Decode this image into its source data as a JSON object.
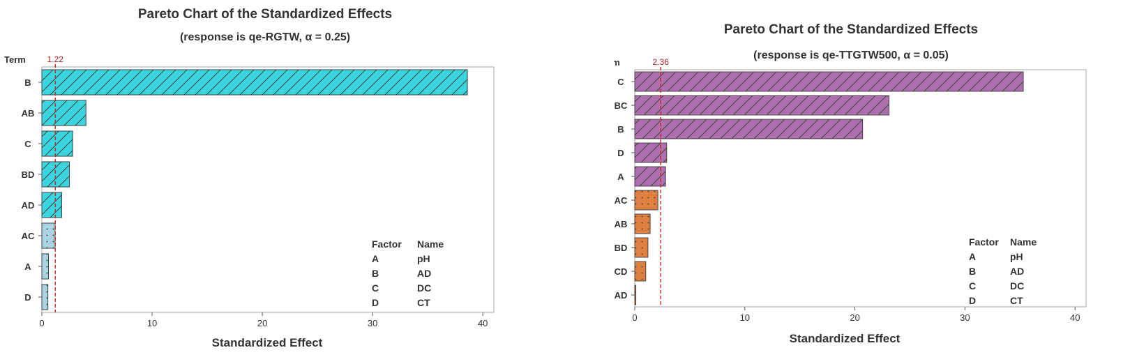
{
  "chart_data": [
    {
      "type": "bar",
      "orientation": "horizontal",
      "title": "Pareto Chart of the Standardized Effects",
      "subtitle": "(response is qe-RGTW, α = 0.25)",
      "xlabel": "Standardized Effect",
      "ylabel": "Term",
      "xlim": [
        0,
        41
      ],
      "xticks": [
        0,
        10,
        20,
        30,
        40
      ],
      "reference_line": {
        "value": 1.22,
        "label": "1.22",
        "color": "#cc2222"
      },
      "categories": [
        "B",
        "AB",
        "C",
        "BD",
        "AD",
        "AC",
        "A",
        "D"
      ],
      "values": [
        38.6,
        4.0,
        2.8,
        2.5,
        1.8,
        1.2,
        0.6,
        0.55
      ],
      "significant_color": "#3ad6df",
      "nonsignificant_color": "#a9d4e2",
      "legend": {
        "headers": [
          "Factor",
          "Name"
        ],
        "rows": [
          [
            "A",
            "pH"
          ],
          [
            "B",
            "AD"
          ],
          [
            "C",
            "DC"
          ],
          [
            "D",
            "CT"
          ]
        ]
      }
    },
    {
      "type": "bar",
      "orientation": "horizontal",
      "title": "Pareto Chart of the Standardized Effects",
      "subtitle": "(response is qe-TTGTW500, α = 0.05)",
      "xlabel": "Standardized Effect",
      "ylabel": "Term",
      "xlim": [
        0,
        41
      ],
      "xticks": [
        0,
        10,
        20,
        30,
        40
      ],
      "reference_line": {
        "value": 2.36,
        "label": "2.36",
        "color": "#cc2222"
      },
      "categories": [
        "C",
        "BC",
        "B",
        "D",
        "A",
        "AC",
        "AB",
        "BD",
        "CD",
        "AD"
      ],
      "values": [
        35.3,
        23.1,
        20.7,
        2.9,
        2.8,
        2.1,
        1.4,
        1.2,
        1.0,
        0.1
      ],
      "significant_color": "#ad6fae",
      "nonsignificant_color": "#e0803f",
      "legend": {
        "headers": [
          "Factor",
          "Name"
        ],
        "rows": [
          [
            "A",
            "pH"
          ],
          [
            "B",
            "AD"
          ],
          [
            "C",
            "DC"
          ],
          [
            "D",
            "CT"
          ]
        ]
      }
    }
  ]
}
